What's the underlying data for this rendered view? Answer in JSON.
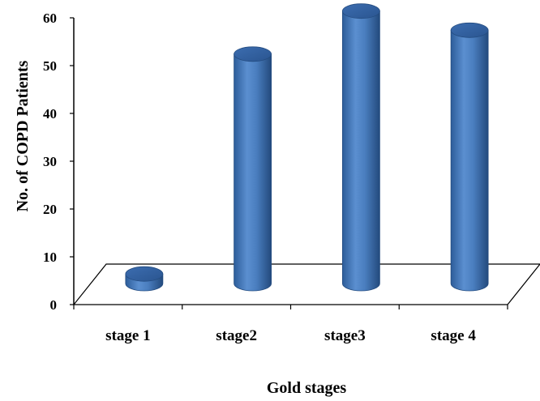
{
  "chart_data": {
    "type": "bar",
    "style": "3d-cylinder",
    "categories": [
      "stage 1",
      "stage2",
      "stage3",
      "stage 4"
    ],
    "values": [
      2,
      48,
      57,
      53
    ],
    "xlabel": "Gold stages",
    "ylabel": "No. of COPD Patients",
    "ylim": [
      0,
      60
    ],
    "yticks": [
      "0",
      "10",
      "20",
      "30",
      "40",
      "50",
      "60"
    ],
    "grid": false,
    "legend": "none",
    "bar_color": "#4a7ebf"
  }
}
